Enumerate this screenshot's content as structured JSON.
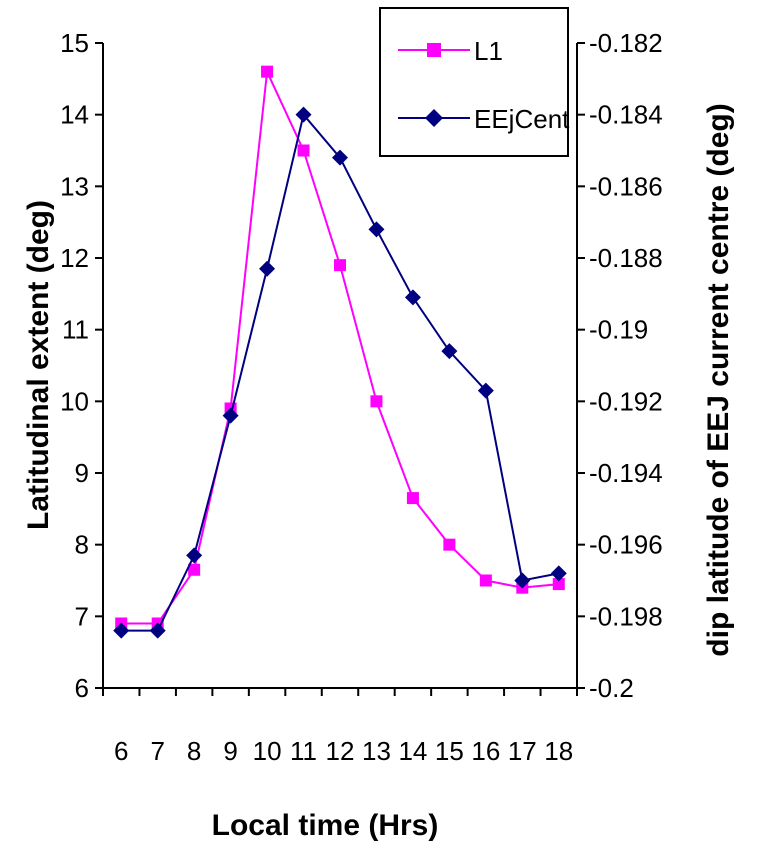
{
  "chart_data": {
    "type": "line",
    "x": [
      6,
      7,
      8,
      9,
      10,
      11,
      12,
      13,
      14,
      15,
      16,
      17,
      18
    ],
    "x_tick_labels": [
      "6",
      "7",
      "8",
      "9",
      "10",
      "11",
      "12",
      "13",
      "14",
      "15",
      "16",
      "17",
      "18"
    ],
    "xlabel": "Local time (Hrs)",
    "ylabel_left": "Latitudinal extent (deg)",
    "ylabel_right": "dip latitude of EEJ current centre (deg)",
    "ylim_left": [
      6,
      15
    ],
    "ylim_right": [
      -0.2,
      -0.182
    ],
    "y_ticks_left": [
      "6",
      "7",
      "8",
      "9",
      "10",
      "11",
      "12",
      "13",
      "14",
      "15"
    ],
    "y_ticks_right": [
      "-0.2",
      "-0.198",
      "-0.196",
      "-0.194",
      "-0.192",
      "-0.19",
      "-0.188",
      "-0.186",
      "-0.184",
      "-0.182"
    ],
    "grid": false,
    "legend_position": "top-right",
    "series": [
      {
        "name": "L1",
        "axis": "left",
        "color": "#ff00ff",
        "marker": "square",
        "values": [
          6.9,
          6.9,
          7.65,
          9.9,
          14.6,
          13.5,
          11.9,
          10.0,
          8.65,
          8.0,
          7.5,
          7.4,
          7.45
        ]
      },
      {
        "name": "EEjCent",
        "axis": "right",
        "color": "#000080",
        "marker": "diamond",
        "values": [
          -0.1984,
          -0.1984,
          -0.1963,
          -0.1924,
          -0.1883,
          -0.184,
          -0.1852,
          -0.1872,
          -0.1891,
          -0.1906,
          -0.1917,
          -0.197,
          -0.1968
        ]
      }
    ]
  }
}
